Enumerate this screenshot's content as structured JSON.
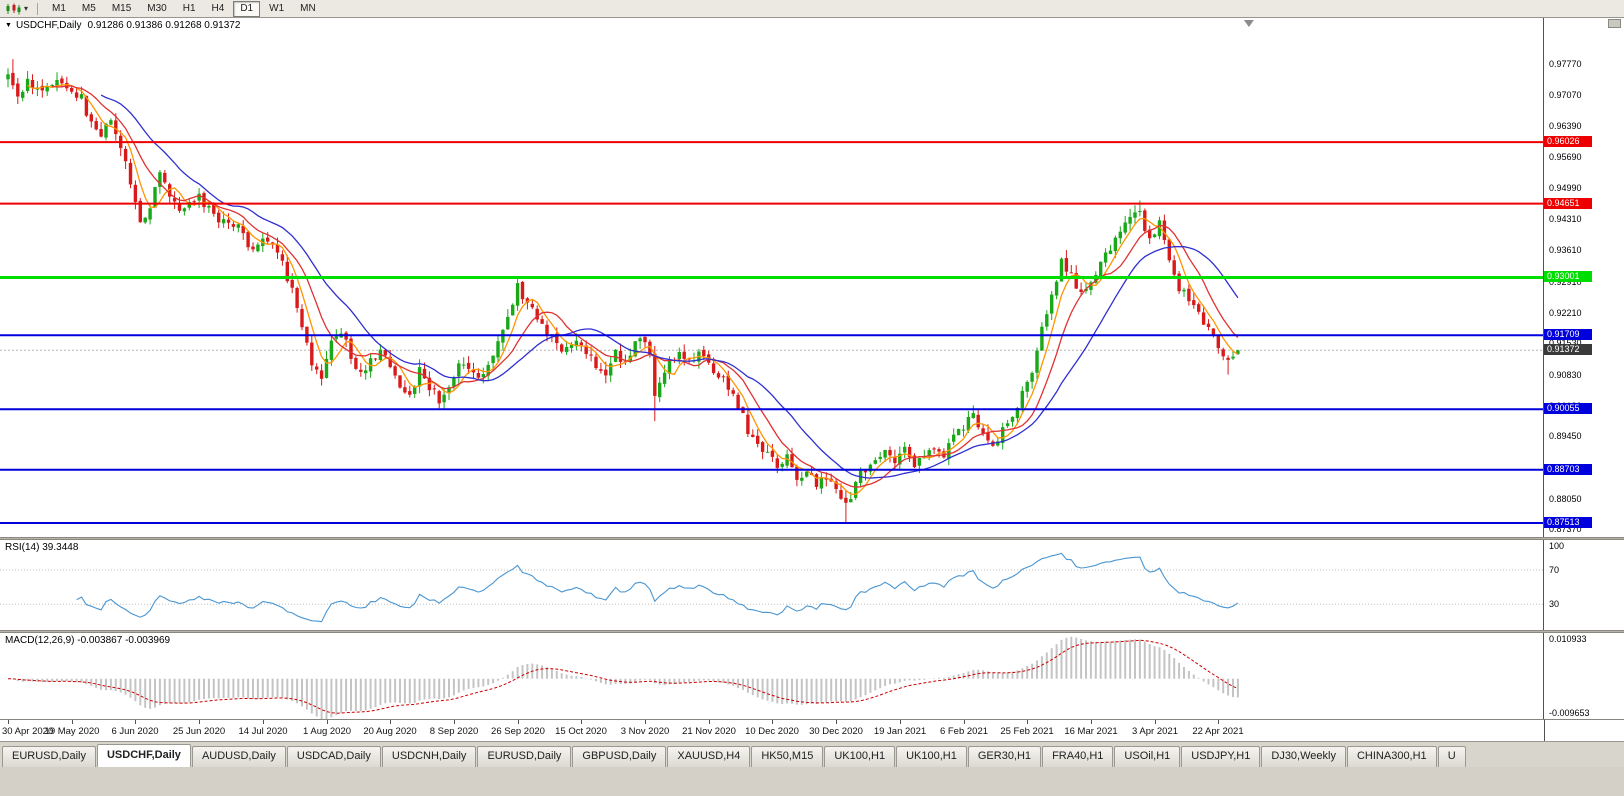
{
  "toolbar": {
    "chart_type_tool": "candlestick-chart",
    "dropdown": "▾",
    "timeframes": [
      "M1",
      "M5",
      "M15",
      "M30",
      "H1",
      "H4",
      "D1",
      "W1",
      "MN"
    ],
    "active_timeframe": "D1"
  },
  "main_chart": {
    "collapse_icon": "▼",
    "title_symbol": "USDCHF,Daily",
    "title_ohlc": "0.91286 0.91386 0.91268 0.91372",
    "price_ticks": [
      "0.97770",
      "0.97070",
      "0.96390",
      "0.95690",
      "0.94990",
      "0.94310",
      "0.93610",
      "0.92910",
      "0.92210",
      "0.91530",
      "0.90830",
      "0.90130",
      "0.89450",
      "0.88750",
      "0.88050",
      "0.87370"
    ],
    "current_price_label": "0.91372"
  },
  "rsi_panel": {
    "title": "RSI(14) 39.3448",
    "ticks": [
      "100",
      "70",
      "30"
    ]
  },
  "macd_panel": {
    "title": "MACD(12,26,9) -0.003867 -0.003969",
    "ticks": [
      "0.010933",
      "-0.009653"
    ]
  },
  "date_axis": {
    "labels": [
      "30 Apr 2020",
      "19 May 2020",
      "6 Jun 2020",
      "25 Jun 2020",
      "14 Jul 2020",
      "1 Aug 2020",
      "20 Aug 2020",
      "8 Sep 2020",
      "26 Sep 2020",
      "15 Oct 2020",
      "3 Nov 2020",
      "21 Nov 2020",
      "10 Dec 2020",
      "30 Dec 2020",
      "19 Jan 2021",
      "6 Feb 2021",
      "25 Feb 2021",
      "16 Mar 2021",
      "3 Apr 2021",
      "22 Apr 2021"
    ]
  },
  "tabs": [
    "EURUSD,Daily",
    "USDCHF,Daily",
    "AUDUSD,Daily",
    "USDCAD,Daily",
    "USDCNH,Daily",
    "EURUSD,Daily",
    "GBPUSD,Daily",
    "XAUUSD,H4",
    "HK50,M15",
    "UK100,H1",
    "UK100,H1",
    "GER30,H1",
    "FRA40,H1",
    "USOil,H1",
    "USDJPY,H1",
    "DJ30,Weekly",
    "CHINA300,H1",
    "U"
  ],
  "active_tab_index": 1,
  "chart_data": {
    "type": "candlestick",
    "symbol": "USDCHF",
    "timeframe": "Daily",
    "title": "USDCHF,Daily",
    "ohlc_last": {
      "open": 0.91286,
      "high": 0.91386,
      "low": 0.91268,
      "close": 0.91372
    },
    "x_range": [
      "30 Apr 2020",
      "22 Apr 2021"
    ],
    "price_axis": {
      "min": 0.872,
      "max": 0.988
    },
    "current_price": 0.91372,
    "hlines": [
      {
        "value": 0.96026,
        "label": "0.96026",
        "color": "#EE0000",
        "width": 2
      },
      {
        "value": 0.94651,
        "label": "0.94651",
        "color": "#EE0000",
        "width": 2
      },
      {
        "value": 0.93001,
        "label": "0.93001",
        "color": "#00DD00",
        "width": 3
      },
      {
        "value": 0.91709,
        "label": "0.91709",
        "color": "#0000DD",
        "width": 2
      },
      {
        "value": 0.90055,
        "label": "0.90055",
        "color": "#0000DD",
        "width": 2
      },
      {
        "value": 0.88703,
        "label": "0.88703",
        "color": "#0000DD",
        "width": 2
      },
      {
        "value": 0.87513,
        "label": "0.87513",
        "color": "#0000DD",
        "width": 2
      }
    ],
    "candle_count": 252,
    "x_label_every": 13,
    "close_anchors": [
      [
        0,
        0.9745
      ],
      [
        2,
        0.97
      ],
      [
        4,
        0.9738
      ],
      [
        7,
        0.9712
      ],
      [
        10,
        0.9745
      ],
      [
        13,
        0.9722
      ],
      [
        15,
        0.97
      ],
      [
        17,
        0.964
      ],
      [
        19,
        0.9612
      ],
      [
        21,
        0.9658
      ],
      [
        23,
        0.96
      ],
      [
        25,
        0.95
      ],
      [
        27,
        0.9432
      ],
      [
        29,
        0.9455
      ],
      [
        31,
        0.9528
      ],
      [
        33,
        0.948
      ],
      [
        35,
        0.9452
      ],
      [
        37,
        0.9462
      ],
      [
        39,
        0.9478
      ],
      [
        41,
        0.9455
      ],
      [
        43,
        0.9432
      ],
      [
        45,
        0.9425
      ],
      [
        47,
        0.9412
      ],
      [
        49,
        0.9368
      ],
      [
        52,
        0.9385
      ],
      [
        54,
        0.9368
      ],
      [
        56,
        0.933
      ],
      [
        58,
        0.927
      ],
      [
        60,
        0.919
      ],
      [
        62,
        0.91
      ],
      [
        64,
        0.9075
      ],
      [
        66,
        0.915
      ],
      [
        68,
        0.9185
      ],
      [
        70,
        0.912
      ],
      [
        72,
        0.9085
      ],
      [
        74,
        0.911
      ],
      [
        76,
        0.914
      ],
      [
        78,
        0.9095
      ],
      [
        80,
        0.9062
      ],
      [
        82,
        0.904
      ],
      [
        84,
        0.9092
      ],
      [
        86,
        0.9058
      ],
      [
        88,
        0.9022
      ],
      [
        90,
        0.906
      ],
      [
        92,
        0.9105
      ],
      [
        94,
        0.9088
      ],
      [
        96,
        0.9072
      ],
      [
        98,
        0.9112
      ],
      [
        100,
        0.9155
      ],
      [
        102,
        0.921
      ],
      [
        104,
        0.9282
      ],
      [
        106,
        0.924
      ],
      [
        108,
        0.9212
      ],
      [
        110,
        0.9178
      ],
      [
        112,
        0.9152
      ],
      [
        114,
        0.9138
      ],
      [
        116,
        0.9162
      ],
      [
        118,
        0.9138
      ],
      [
        120,
        0.9108
      ],
      [
        122,
        0.909
      ],
      [
        124,
        0.9132
      ],
      [
        126,
        0.9112
      ],
      [
        128,
        0.915
      ],
      [
        130,
        0.9165
      ],
      [
        131,
        0.912
      ],
      [
        132,
        0.903
      ],
      [
        133,
        0.9075
      ],
      [
        135,
        0.9118
      ],
      [
        137,
        0.9132
      ],
      [
        139,
        0.9112
      ],
      [
        141,
        0.9128
      ],
      [
        143,
        0.9108
      ],
      [
        145,
        0.9086
      ],
      [
        147,
        0.9055
      ],
      [
        149,
        0.9015
      ],
      [
        151,
        0.896
      ],
      [
        153,
        0.8928
      ],
      [
        155,
        0.8905
      ],
      [
        157,
        0.8878
      ],
      [
        159,
        0.8898
      ],
      [
        161,
        0.885
      ],
      [
        163,
        0.8872
      ],
      [
        165,
        0.883
      ],
      [
        167,
        0.8858
      ],
      [
        169,
        0.8822
      ],
      [
        171,
        0.8792
      ],
      [
        173,
        0.884
      ],
      [
        175,
        0.8875
      ],
      [
        177,
        0.8895
      ],
      [
        179,
        0.8915
      ],
      [
        181,
        0.889
      ],
      [
        183,
        0.8912
      ],
      [
        185,
        0.888
      ],
      [
        187,
        0.8902
      ],
      [
        189,
        0.8925
      ],
      [
        191,
        0.8902
      ],
      [
        193,
        0.8942
      ],
      [
        195,
        0.8968
      ],
      [
        197,
        0.8998
      ],
      [
        199,
        0.895
      ],
      [
        201,
        0.8928
      ],
      [
        203,
        0.896
      ],
      [
        205,
        0.8995
      ],
      [
        207,
        0.9042
      ],
      [
        209,
        0.9085
      ],
      [
        211,
        0.9185
      ],
      [
        213,
        0.927
      ],
      [
        215,
        0.9332
      ],
      [
        217,
        0.93
      ],
      [
        219,
        0.9268
      ],
      [
        221,
        0.9295
      ],
      [
        223,
        0.9332
      ],
      [
        225,
        0.937
      ],
      [
        227,
        0.9402
      ],
      [
        229,
        0.9435
      ],
      [
        231,
        0.9442
      ],
      [
        233,
        0.9388
      ],
      [
        235,
        0.9418
      ],
      [
        237,
        0.9328
      ],
      [
        239,
        0.928
      ],
      [
        241,
        0.925
      ],
      [
        243,
        0.922
      ],
      [
        245,
        0.9188
      ],
      [
        247,
        0.915
      ],
      [
        249,
        0.9118
      ],
      [
        251,
        0.91372
      ]
    ],
    "wick_overrides": [
      [
        1,
        "h",
        0.9788
      ],
      [
        104,
        "h",
        0.9295
      ],
      [
        132,
        "l",
        0.8979
      ],
      [
        171,
        "l",
        0.8752
      ],
      [
        231,
        "h",
        0.9472
      ],
      [
        249,
        "l",
        0.9083
      ]
    ],
    "moving_averages": [
      {
        "period": 5,
        "color": "#FF9500"
      },
      {
        "period": 10,
        "color": "#E03232"
      },
      {
        "period": 20,
        "color": "#3030D0"
      }
    ],
    "indicators": {
      "rsi": {
        "period": 14,
        "last": 39.3448,
        "levels": [
          70,
          30
        ],
        "range": [
          0,
          105
        ]
      },
      "macd": {
        "fast": 12,
        "slow": 26,
        "signal": 9,
        "last_main": -0.003867,
        "last_signal": -0.003969,
        "range": [
          -0.009653,
          0.010933
        ]
      }
    },
    "bull_color": "#18A818",
    "bear_color": "#D91A1A",
    "hist_color": "#C4C4C4",
    "signal_color": "#CC0000",
    "rsi_color": "#4A96D2"
  }
}
